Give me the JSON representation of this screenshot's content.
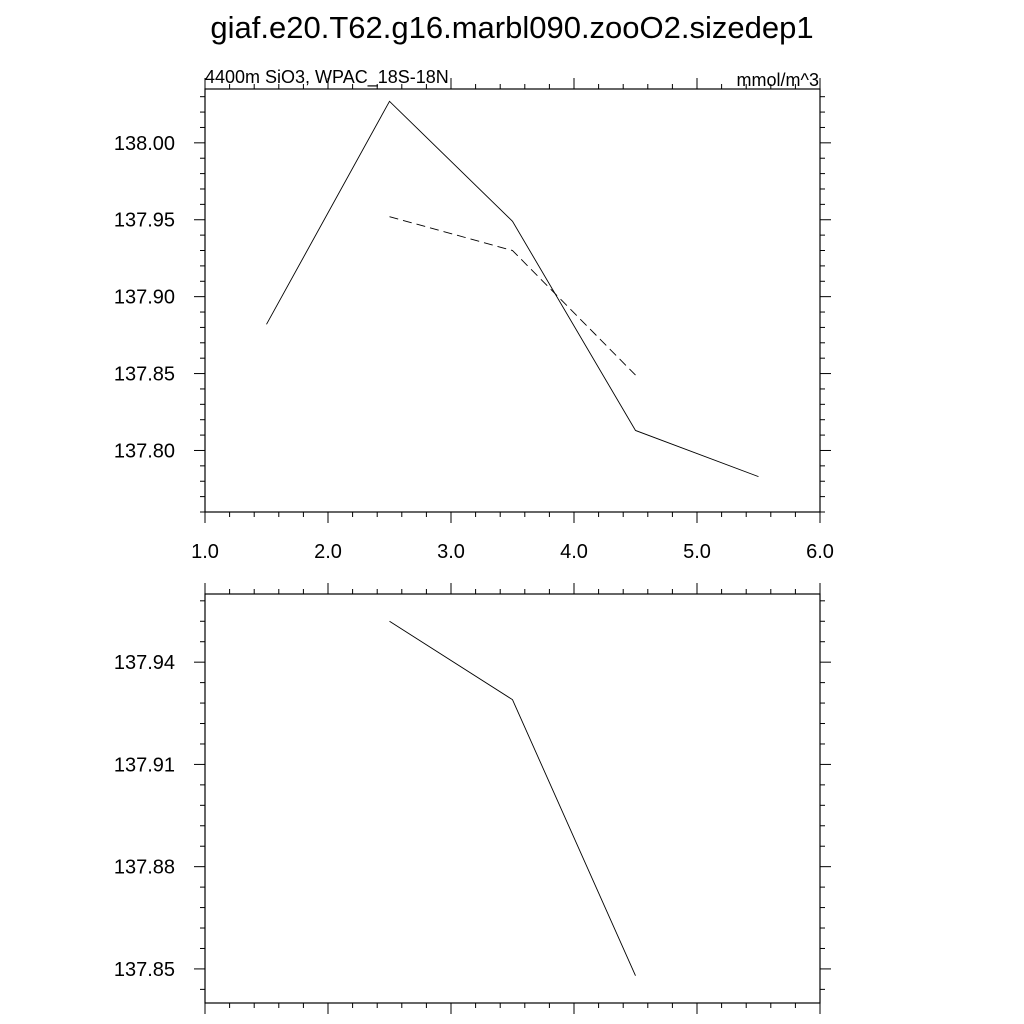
{
  "title": "giaf.e20.T62.g16.marbl090.zooO2.sizedep1",
  "chart_data": [
    {
      "type": "line",
      "subtitle_left": "4400m SiO3, WPAC_18S-18N",
      "subtitle_right": "mmol/m^3",
      "xlim": [
        1.0,
        6.0
      ],
      "ylim": [
        137.76,
        138.035
      ],
      "x_ticks": [
        1.0,
        2.0,
        3.0,
        4.0,
        5.0,
        6.0
      ],
      "x_tick_labels": [
        "1.0",
        "2.0",
        "3.0",
        "4.0",
        "5.0",
        "6.0"
      ],
      "y_ticks": [
        137.8,
        137.85,
        137.9,
        137.95,
        138.0
      ],
      "y_tick_labels": [
        "137.80",
        "137.85",
        "137.90",
        "137.95",
        "138.00"
      ],
      "grid": false,
      "series": [
        {
          "style": "solid",
          "color": "#000000",
          "x": [
            1.5,
            2.5,
            3.5,
            4.5,
            5.5
          ],
          "y": [
            137.882,
            138.027,
            137.949,
            137.813,
            137.783
          ]
        },
        {
          "style": "dashed",
          "color": "#000000",
          "x": [
            2.5,
            3.5,
            4.5
          ],
          "y": [
            137.952,
            137.93,
            137.849
          ]
        }
      ]
    },
    {
      "type": "line",
      "xlim": [
        1.0,
        6.0
      ],
      "ylim": [
        137.84,
        137.96
      ],
      "x_ticks": [
        1.0,
        2.0,
        3.0,
        4.0,
        5.0,
        6.0
      ],
      "x_tick_labels": [],
      "y_ticks": [
        137.85,
        137.88,
        137.91,
        137.94
      ],
      "y_tick_labels": [
        "137.85",
        "137.88",
        "137.91",
        "137.94"
      ],
      "grid": false,
      "series": [
        {
          "style": "solid",
          "color": "#000000",
          "x": [
            2.5,
            3.5,
            4.5
          ],
          "y": [
            137.952,
            137.929,
            137.848
          ]
        }
      ]
    }
  ]
}
